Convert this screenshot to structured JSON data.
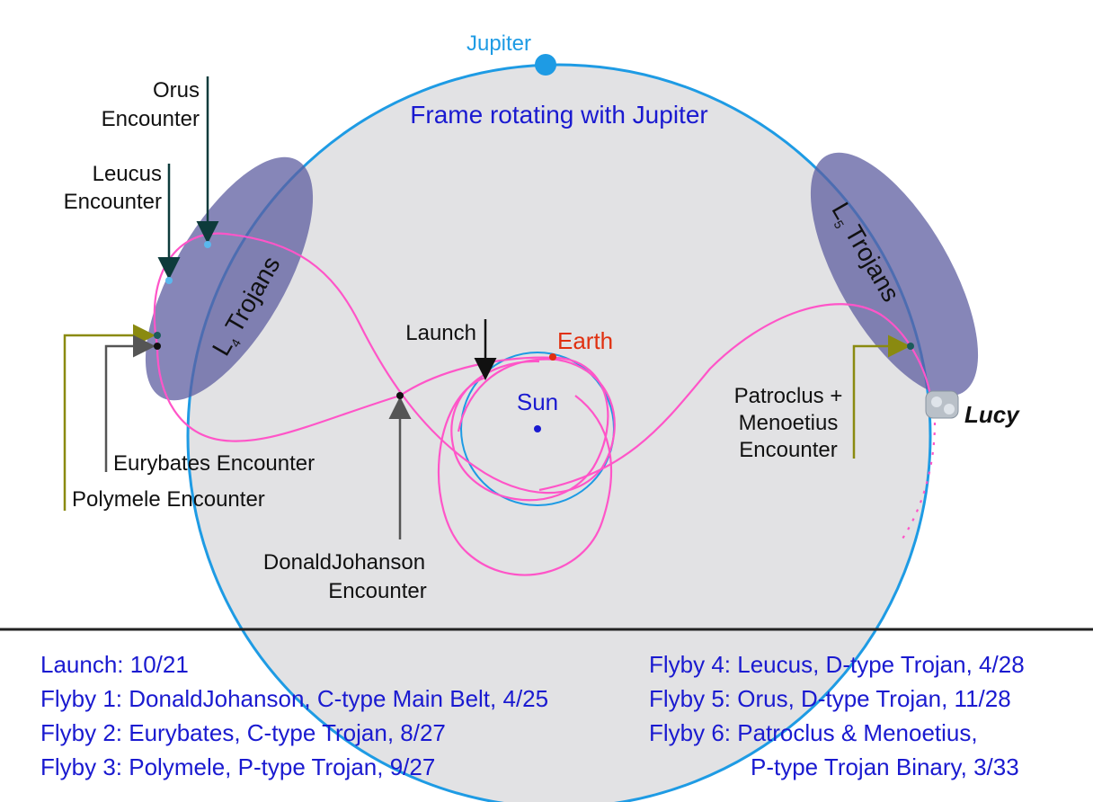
{
  "header": {
    "planet": "Jupiter",
    "frame": "Frame rotating with Jupiter"
  },
  "labels": {
    "orus": [
      "Orus",
      "Encounter"
    ],
    "leucus": [
      "Leucus",
      "Encounter"
    ],
    "eurybates": "Eurybates Encounter",
    "polymele": "Polymele Encounter",
    "l4": {
      "letter": "L",
      "sub": "4",
      "text": "Trojans"
    },
    "l5": {
      "letter": "L",
      "sub": "5",
      "text": "Trojans"
    },
    "launch": "Launch",
    "earth": "Earth",
    "sun": "Sun",
    "donaldjohanson": [
      "DonaldJohanson",
      "Encounter"
    ],
    "patroclus": [
      "Patroclus +",
      "Menoetius",
      "Encounter"
    ],
    "lucy": "Lucy"
  },
  "legend": {
    "left": [
      "Launch: 10/21",
      "Flyby 1: DonaldJohanson, C-type  Main Belt, 4/25",
      "Flyby 2: Eurybates, C-type Trojan, 8/27",
      "Flyby 3: Polymele, P-type Trojan, 9/27"
    ],
    "right": [
      "Flyby 4: Leucus, D-type Trojan, 4/28",
      "Flyby 5: Orus, D-type Trojan, 11/28",
      "Flyby 6: Patroclus & Menoetius,",
      "P-type Trojan Binary, 3/33"
    ]
  }
}
